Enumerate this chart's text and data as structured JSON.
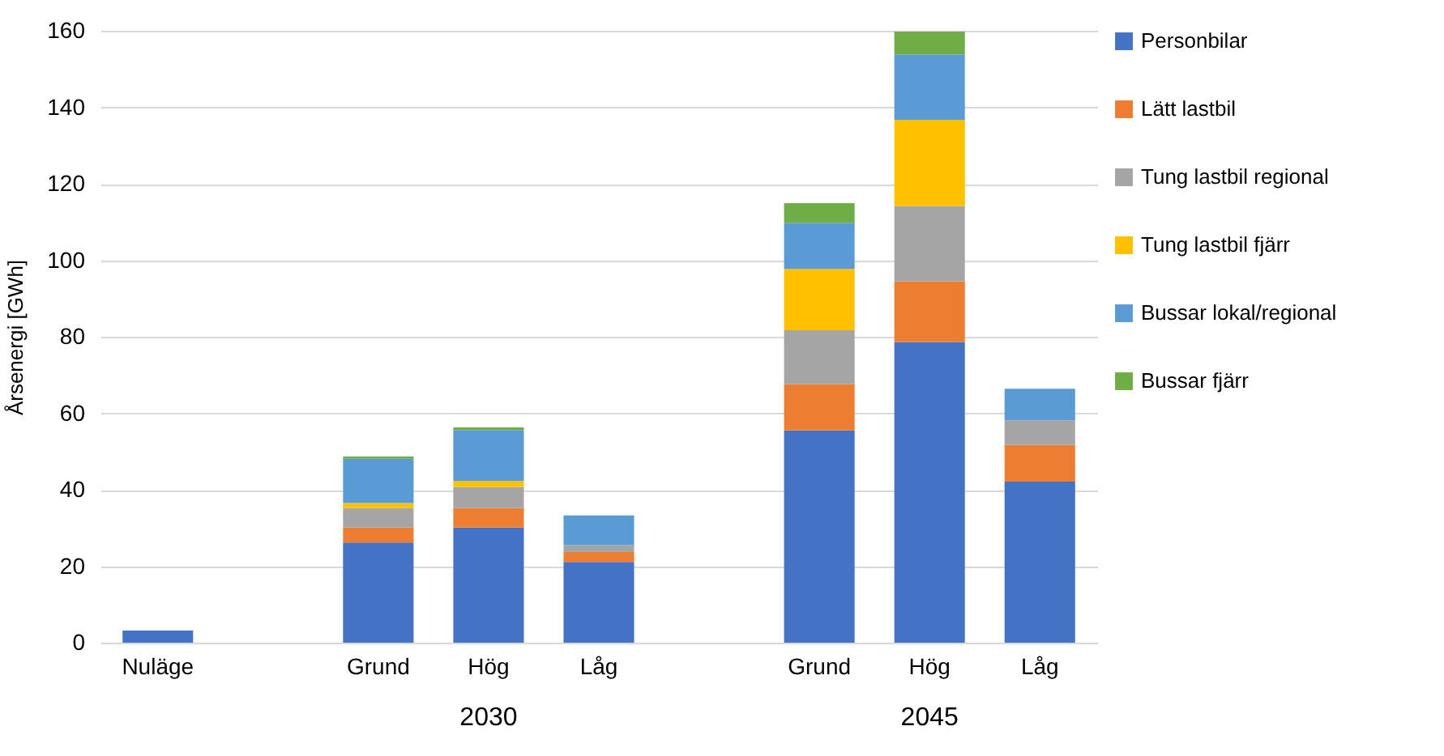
{
  "chart_data": {
    "type": "bar",
    "stacked": true,
    "ylabel": "Årsenergi [GWh]",
    "categories": [
      "Nuläge",
      null,
      "Grund",
      "Hög",
      "Låg",
      null,
      "Grund",
      "Hög",
      "Låg"
    ],
    "series": [
      {
        "name": "Personbilar",
        "color": "#4472c4",
        "values": [
          3.2,
          null,
          26.2,
          30.1,
          21.1,
          null,
          55.5,
          78.6,
          42.1
        ]
      },
      {
        "name": "Lätt lastbil",
        "color": "#ed7d31",
        "values": [
          null,
          null,
          3.9,
          5.1,
          2.6,
          null,
          12.1,
          15.9,
          9.6
        ]
      },
      {
        "name": "Tung lastbil regional",
        "color": "#a5a5a5",
        "values": [
          null,
          null,
          5.1,
          5.5,
          1.8,
          null,
          14.1,
          19.7,
          6.4
        ]
      },
      {
        "name": "Tung lastbil fjärr",
        "color": "#ffc000",
        "values": [
          null,
          null,
          1.3,
          1.6,
          null,
          null,
          16.0,
          22.5,
          null
        ]
      },
      {
        "name": "Bussar lokal/regional",
        "color": "#5b9bd5",
        "values": [
          null,
          null,
          11.6,
          13.3,
          7.8,
          null,
          12.1,
          17.1,
          8.3
        ]
      },
      {
        "name": "Bussar fjärr",
        "color": "#70ad47",
        "values": [
          null,
          null,
          0.6,
          0.7,
          null,
          null,
          5.1,
          6.0,
          null
        ]
      }
    ],
    "ylim": [
      0,
      160
    ],
    "yticks": [
      0,
      20,
      40,
      60,
      80,
      100,
      120,
      140,
      160
    ],
    "grid": "y",
    "legend": "right",
    "annotations": [
      "2030",
      "2045"
    ]
  }
}
